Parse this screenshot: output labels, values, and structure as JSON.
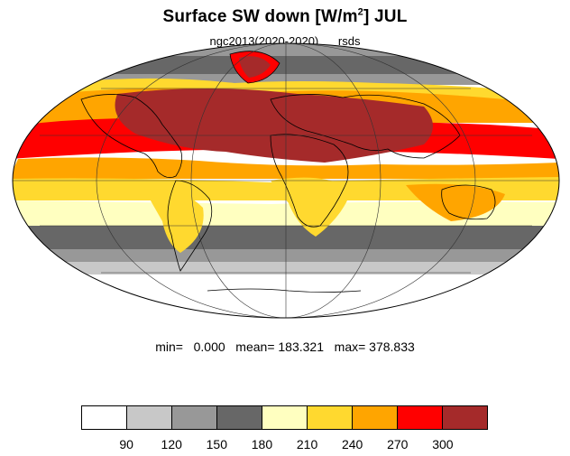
{
  "title": {
    "text": "Surface SW down [W/m",
    "superscript": "2",
    "text_after": "]  JUL"
  },
  "subtitle": {
    "left": "ngc2013(2020-2020)",
    "right": "rsds"
  },
  "stats": {
    "text": "min=   0.000   mean= 183.321   max= 378.833"
  },
  "colorbar": {
    "colors": [
      "#ffffff",
      "#c8c8c8",
      "#989898",
      "#676767",
      "#ffffc0",
      "#ffd92f",
      "#ffa500",
      "#ff0000",
      "#a52a2a"
    ],
    "labels": [
      "90",
      "120",
      "150",
      "180",
      "210",
      "240",
      "270",
      "300"
    ]
  },
  "map": {
    "projection": "mollweide",
    "levels": [
      90,
      120,
      150,
      180,
      210,
      240,
      270,
      300
    ]
  }
}
